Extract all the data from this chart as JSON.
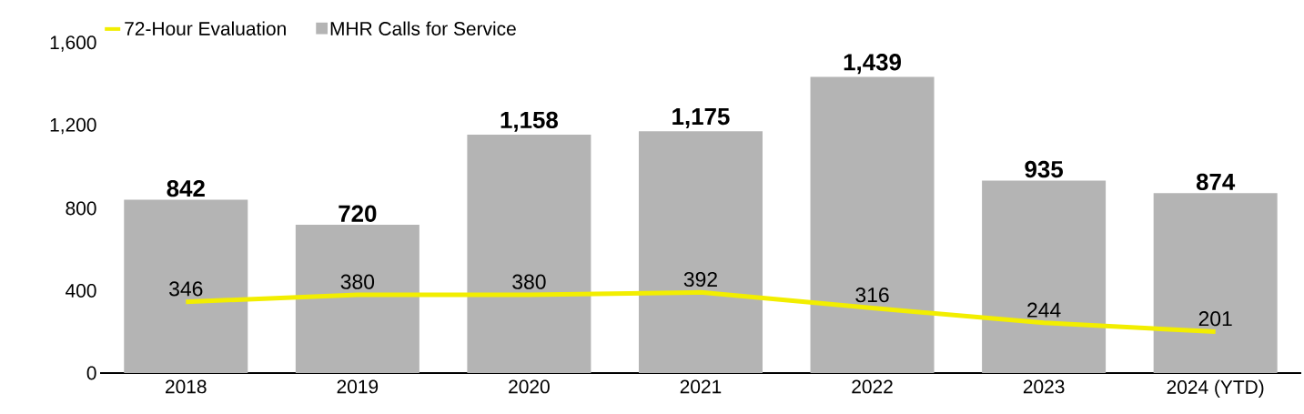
{
  "chart_data": {
    "type": "bar",
    "categories": [
      "2018",
      "2019",
      "2020",
      "2021",
      "2022",
      "2023",
      "2024 (YTD)"
    ],
    "series": [
      {
        "name": "MHR Calls for Service",
        "color": "#b4b4b4",
        "values": [
          842,
          720,
          1158,
          1175,
          1439,
          935,
          874
        ],
        "value_labels": [
          "842",
          "720",
          "1,158",
          "1,175",
          "1,439",
          "935",
          "874"
        ]
      },
      {
        "name": "72-Hour Evaluation",
        "type": "line",
        "color": "#f2ee00",
        "values": [
          346,
          380,
          380,
          392,
          316,
          244,
          201
        ],
        "value_labels": [
          "346",
          "380",
          "380",
          "392",
          "316",
          "244",
          "201"
        ]
      }
    ],
    "ylim": [
      0,
      1600
    ],
    "yticks": [
      0,
      400,
      800,
      {
        "value": 1200,
        "label": "1,200"
      },
      {
        "value": 1600,
        "label": "1,600"
      }
    ],
    "legend": "top left"
  }
}
